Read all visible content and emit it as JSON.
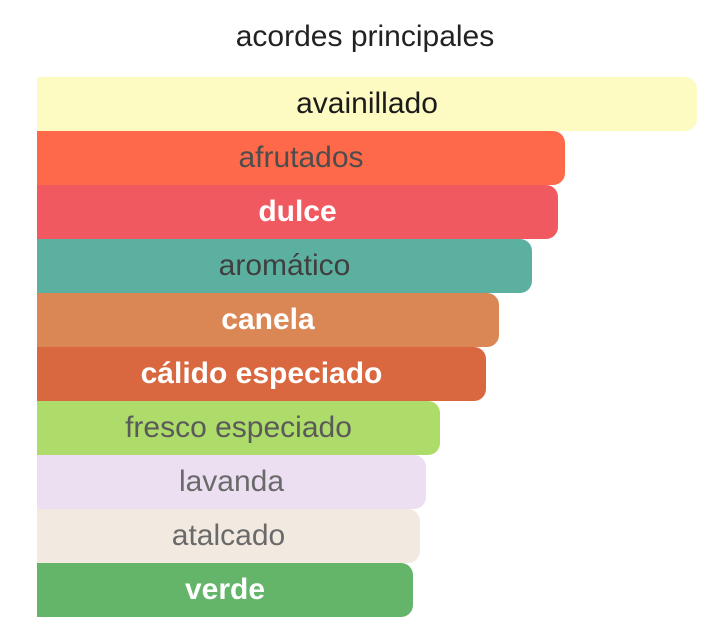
{
  "chart_data": {
    "type": "bar",
    "orientation": "horizontal",
    "title": "acordes principales",
    "xlabel": "",
    "ylabel": "",
    "grid": false,
    "legend": "none",
    "xlim": [
      0,
      100
    ],
    "categories": [
      "avainillado",
      "afrutados",
      "dulce",
      "aromático",
      "canela",
      "cálido especiado",
      "fresco especiado",
      "lavanda",
      "atalcado",
      "verde"
    ],
    "values": [
      100,
      80,
      79,
      75,
      70,
      68,
      61,
      59,
      58,
      57
    ],
    "colors": [
      "#fefbc2",
      "#fe6949",
      "#f15961",
      "#5cb0a0",
      "#da8755",
      "#d96840",
      "#aedc6a",
      "#ecdff2",
      "#f2e9e1",
      "#64b46a"
    ],
    "label_colors": [
      "#1b1b1b",
      "#4d4d4d",
      "#ffffff",
      "#3f3f3f",
      "#ffffff",
      "#ffffff",
      "#5a5a5a",
      "#6a6a6a",
      "#6a6a6a",
      "#ffffff"
    ],
    "label_weights": [
      "normal",
      "normal",
      "bold",
      "normal",
      "bold",
      "bold",
      "normal",
      "normal",
      "normal",
      "bold"
    ]
  }
}
